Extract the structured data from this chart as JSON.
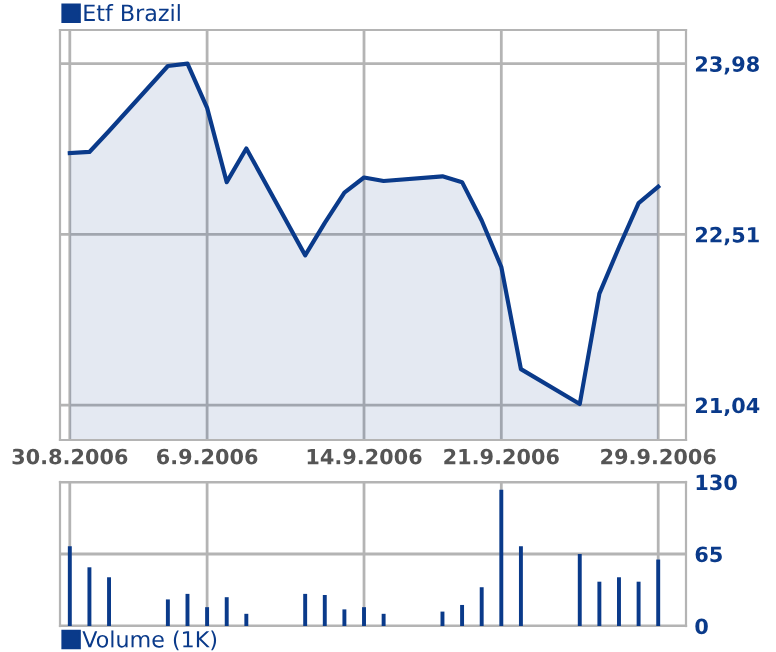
{
  "chart_data": [
    {
      "type": "area",
      "legend": "top left",
      "grid": true,
      "tick_labels": "xy",
      "x": [
        "2006-08-30",
        "2006-08-31",
        "2006-09-01",
        "2006-09-04",
        "2006-09-05",
        "2006-09-06",
        "2006-09-07",
        "2006-09-08",
        "2006-09-11",
        "2006-09-12",
        "2006-09-13",
        "2006-09-14",
        "2006-09-15",
        "2006-09-18",
        "2006-09-19",
        "2006-09-20",
        "2006-09-21",
        "2006-09-22",
        "2006-09-25",
        "2006-09-26",
        "2006-09-27",
        "2006-09-28",
        "2006-09-29"
      ],
      "series": [
        {
          "name": "Etf Brazil",
          "color": "#0a3a8a",
          "values": [
            23.21,
            23.22,
            23.4,
            23.96,
            23.98,
            23.6,
            22.96,
            23.25,
            22.33,
            22.61,
            22.87,
            23.0,
            22.97,
            23.01,
            22.96,
            22.63,
            22.23,
            21.35,
            21.05,
            22.0,
            22.4,
            22.78,
            22.92
          ]
        }
      ],
      "xlim": [
        "2006-08-29T12:00",
        "2006-09-30T10:00"
      ],
      "xticks": [
        {
          "value": "2006-08-30",
          "label": "30.8.2006"
        },
        {
          "value": "2006-09-06",
          "label": "6.9.2006"
        },
        {
          "value": "2006-09-14",
          "label": "14.9.2006"
        },
        {
          "value": "2006-09-21",
          "label": "21.9.2006"
        },
        {
          "value": "2006-09-29",
          "label": "29.9.2006"
        }
      ],
      "ylim": [
        20.74,
        24.27
      ],
      "yticks": [
        {
          "value": 21.04,
          "label": "21,04"
        },
        {
          "value": 22.51,
          "label": "22,51"
        },
        {
          "value": 23.98,
          "label": "23,98"
        }
      ]
    },
    {
      "type": "bar",
      "legend": "bottom left",
      "grid": true,
      "tick_labels": "y",
      "x": [
        "2006-08-30",
        "2006-08-31",
        "2006-09-01",
        "2006-09-04",
        "2006-09-05",
        "2006-09-06",
        "2006-09-07",
        "2006-09-08",
        "2006-09-11",
        "2006-09-12",
        "2006-09-13",
        "2006-09-14",
        "2006-09-15",
        "2006-09-18",
        "2006-09-19",
        "2006-09-20",
        "2006-09-21",
        "2006-09-22",
        "2006-09-25",
        "2006-09-26",
        "2006-09-27",
        "2006-09-28",
        "2006-09-29"
      ],
      "series": [
        {
          "name": "Volume (1K)",
          "color": "#0a3a8a",
          "values": [
            72,
            53,
            44,
            24,
            29,
            17,
            26,
            11,
            29,
            28,
            15,
            17,
            11,
            13,
            19,
            35,
            123,
            72,
            65,
            40,
            44,
            40,
            60
          ]
        }
      ],
      "xlim": [
        "2006-08-29T12:00",
        "2006-09-30T10:00"
      ],
      "xticks": [
        {
          "value": "2006-08-30",
          "label": null
        },
        {
          "value": "2006-09-06",
          "label": null
        },
        {
          "value": "2006-09-14",
          "label": null
        },
        {
          "value": "2006-09-21",
          "label": null
        },
        {
          "value": "2006-09-29",
          "label": null
        }
      ],
      "ylim": [
        0,
        130
      ],
      "yticks": [
        0,
        65,
        130
      ]
    }
  ]
}
